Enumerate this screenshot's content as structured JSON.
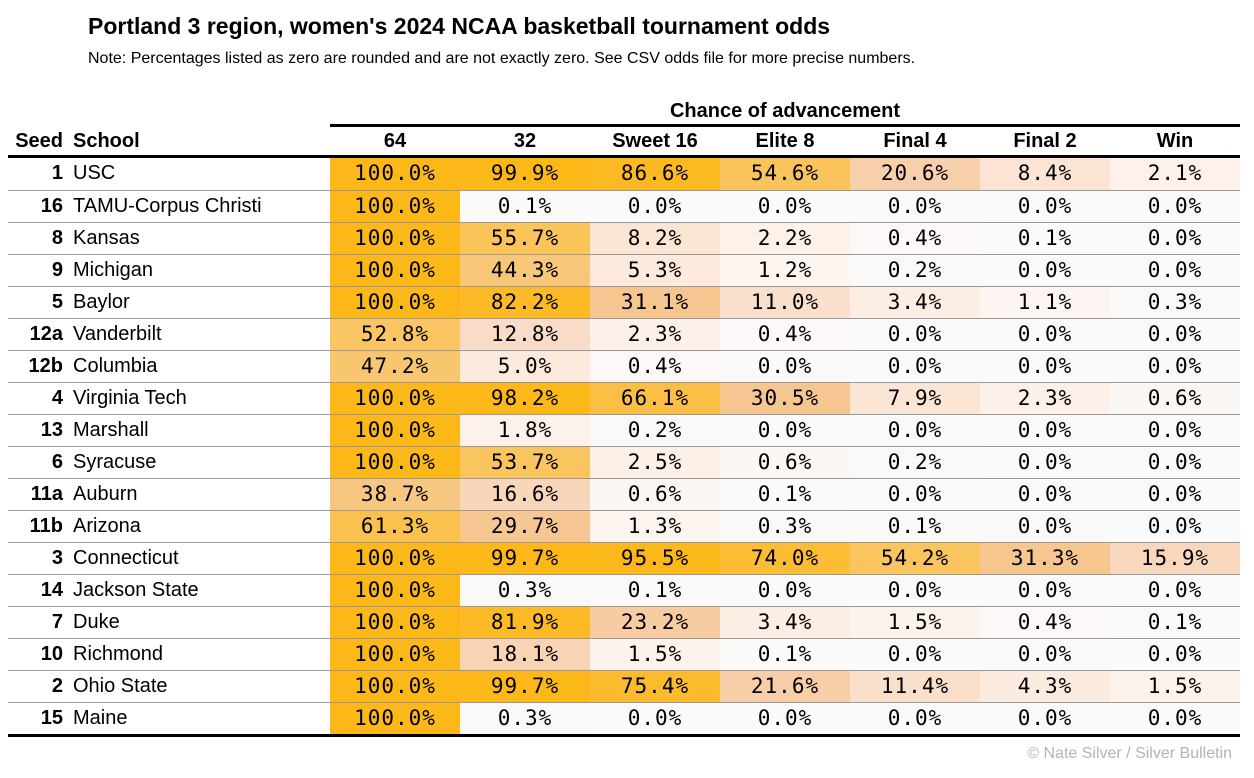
{
  "chart_data": {
    "type": "heatmap",
    "title": "Portland 3 region, women's 2024 NCAA basketball tournament odds",
    "note": "Note: Percentages listed as zero are rounded and are not exactly zero. See CSV odds file for more precise numbers.",
    "group_header": "Chance of advancement",
    "row_headers": {
      "seed": "Seed",
      "school": "School"
    },
    "columns": [
      "64",
      "32",
      "Sweet 16",
      "Elite 8",
      "Final 4",
      "Final 2",
      "Win"
    ],
    "unit": "%",
    "value_format": "one_decimal_percent",
    "rows": [
      {
        "seed": "1",
        "school": "USC",
        "values": [
          100.0,
          99.9,
          86.6,
          54.6,
          20.6,
          8.4,
          2.1
        ]
      },
      {
        "seed": "16",
        "school": "TAMU-Corpus Christi",
        "values": [
          100.0,
          0.1,
          0.0,
          0.0,
          0.0,
          0.0,
          0.0
        ]
      },
      {
        "seed": "8",
        "school": "Kansas",
        "values": [
          100.0,
          55.7,
          8.2,
          2.2,
          0.4,
          0.1,
          0.0
        ]
      },
      {
        "seed": "9",
        "school": "Michigan",
        "values": [
          100.0,
          44.3,
          5.3,
          1.2,
          0.2,
          0.0,
          0.0
        ]
      },
      {
        "seed": "5",
        "school": "Baylor",
        "values": [
          100.0,
          82.2,
          31.1,
          11.0,
          3.4,
          1.1,
          0.3
        ]
      },
      {
        "seed": "12a",
        "school": "Vanderbilt",
        "values": [
          52.8,
          12.8,
          2.3,
          0.4,
          0.0,
          0.0,
          0.0
        ]
      },
      {
        "seed": "12b",
        "school": "Columbia",
        "values": [
          47.2,
          5.0,
          0.4,
          0.0,
          0.0,
          0.0,
          0.0
        ]
      },
      {
        "seed": "4",
        "school": "Virginia Tech",
        "values": [
          100.0,
          98.2,
          66.1,
          30.5,
          7.9,
          2.3,
          0.6
        ]
      },
      {
        "seed": "13",
        "school": "Marshall",
        "values": [
          100.0,
          1.8,
          0.2,
          0.0,
          0.0,
          0.0,
          0.0
        ]
      },
      {
        "seed": "6",
        "school": "Syracuse",
        "values": [
          100.0,
          53.7,
          2.5,
          0.6,
          0.2,
          0.0,
          0.0
        ]
      },
      {
        "seed": "11a",
        "school": "Auburn",
        "values": [
          38.7,
          16.6,
          0.6,
          0.1,
          0.0,
          0.0,
          0.0
        ]
      },
      {
        "seed": "11b",
        "school": "Arizona",
        "values": [
          61.3,
          29.7,
          1.3,
          0.3,
          0.1,
          0.0,
          0.0
        ]
      },
      {
        "seed": "3",
        "school": "Connecticut",
        "values": [
          100.0,
          99.7,
          95.5,
          74.0,
          54.2,
          31.3,
          15.9
        ]
      },
      {
        "seed": "14",
        "school": "Jackson State",
        "values": [
          100.0,
          0.3,
          0.1,
          0.0,
          0.0,
          0.0,
          0.0
        ]
      },
      {
        "seed": "7",
        "school": "Duke",
        "values": [
          100.0,
          81.9,
          23.2,
          3.4,
          1.5,
          0.4,
          0.1
        ]
      },
      {
        "seed": "10",
        "school": "Richmond",
        "values": [
          100.0,
          18.1,
          1.5,
          0.1,
          0.0,
          0.0,
          0.0
        ]
      },
      {
        "seed": "2",
        "school": "Ohio State",
        "values": [
          100.0,
          99.7,
          75.4,
          21.6,
          11.4,
          4.3,
          1.5
        ]
      },
      {
        "seed": "15",
        "school": "Maine",
        "values": [
          100.0,
          0.3,
          0.0,
          0.0,
          0.0,
          0.0,
          0.0
        ]
      }
    ],
    "colorscale": [
      [
        0,
        "#fafafa"
      ],
      [
        2,
        "#fdf1e9"
      ],
      [
        5,
        "#fcebdd"
      ],
      [
        8,
        "#fbe5d4"
      ],
      [
        13,
        "#f9dcc6"
      ],
      [
        18,
        "#f8d3b4"
      ],
      [
        22,
        "#f7cda6"
      ],
      [
        31,
        "#f6c690"
      ],
      [
        44,
        "#f8c778"
      ],
      [
        55,
        "#fac45c"
      ],
      [
        66,
        "#fbbf46"
      ],
      [
        76,
        "#fcbb2e"
      ],
      [
        87,
        "#fcb920"
      ],
      [
        100,
        "#fcb818"
      ]
    ],
    "credit": "© Nate Silver / Silver Bulletin"
  }
}
